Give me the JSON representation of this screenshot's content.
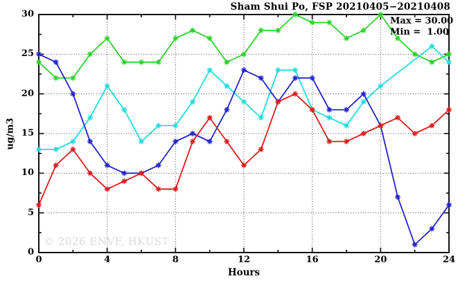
{
  "chart_data": {
    "type": "line",
    "title": "Sham Shui Po, FSP 20210405−20210408",
    "xlabel": "Hours",
    "ylabel": "ug/m3",
    "xlim": [
      0,
      24
    ],
    "ylim": [
      0,
      30
    ],
    "x_ticks": [
      0,
      4,
      8,
      12,
      16,
      20,
      24
    ],
    "x_minor_ticks": [
      2,
      6,
      10,
      14,
      18,
      22
    ],
    "y_ticks": [
      0,
      5,
      10,
      15,
      20,
      25,
      30
    ],
    "y_minor_ticks": [
      2.5,
      7.5,
      12.5,
      17.5,
      22.5,
      27.5
    ],
    "grid": true,
    "legend": "none",
    "annotations": {
      "max": "Max = 30.00",
      "min": "Min =  1.00"
    },
    "watermark": "© 2026 ENVF, HKUST",
    "x": [
      0,
      1,
      2,
      3,
      4,
      5,
      6,
      7,
      8,
      9,
      10,
      11,
      12,
      13,
      14,
      15,
      16,
      17,
      18,
      19,
      20,
      21,
      22,
      23,
      24
    ],
    "series": [
      {
        "name": "green-series",
        "color": "#2bd22b",
        "values": [
          24,
          22,
          22,
          25,
          27,
          24,
          24,
          24,
          27,
          28,
          27,
          24,
          25,
          28,
          28,
          30,
          29,
          29,
          27,
          28,
          30,
          27,
          25,
          24,
          25
        ]
      },
      {
        "name": "cyan-series",
        "color": "#22dcdc",
        "values": [
          13,
          13,
          14,
          17,
          21,
          18,
          14,
          16,
          16,
          19,
          23,
          21,
          19,
          17,
          23,
          23,
          18,
          17,
          16,
          19,
          21,
          null,
          null,
          26,
          24
        ]
      },
      {
        "name": "blue-series",
        "color": "#2222cc",
        "values": [
          25,
          24,
          20,
          14,
          11,
          10,
          10,
          11,
          14,
          15,
          14,
          18,
          23,
          22,
          19,
          22,
          22,
          18,
          18,
          20,
          16,
          7,
          1,
          3,
          6
        ]
      },
      {
        "name": "red-series",
        "color": "#dc1a1a",
        "values": [
          6,
          11,
          13,
          10,
          8,
          9,
          10,
          8,
          8,
          14,
          17,
          14,
          11,
          13,
          19,
          20,
          18,
          14,
          14,
          15,
          16,
          17,
          15,
          16,
          18
        ]
      }
    ]
  }
}
